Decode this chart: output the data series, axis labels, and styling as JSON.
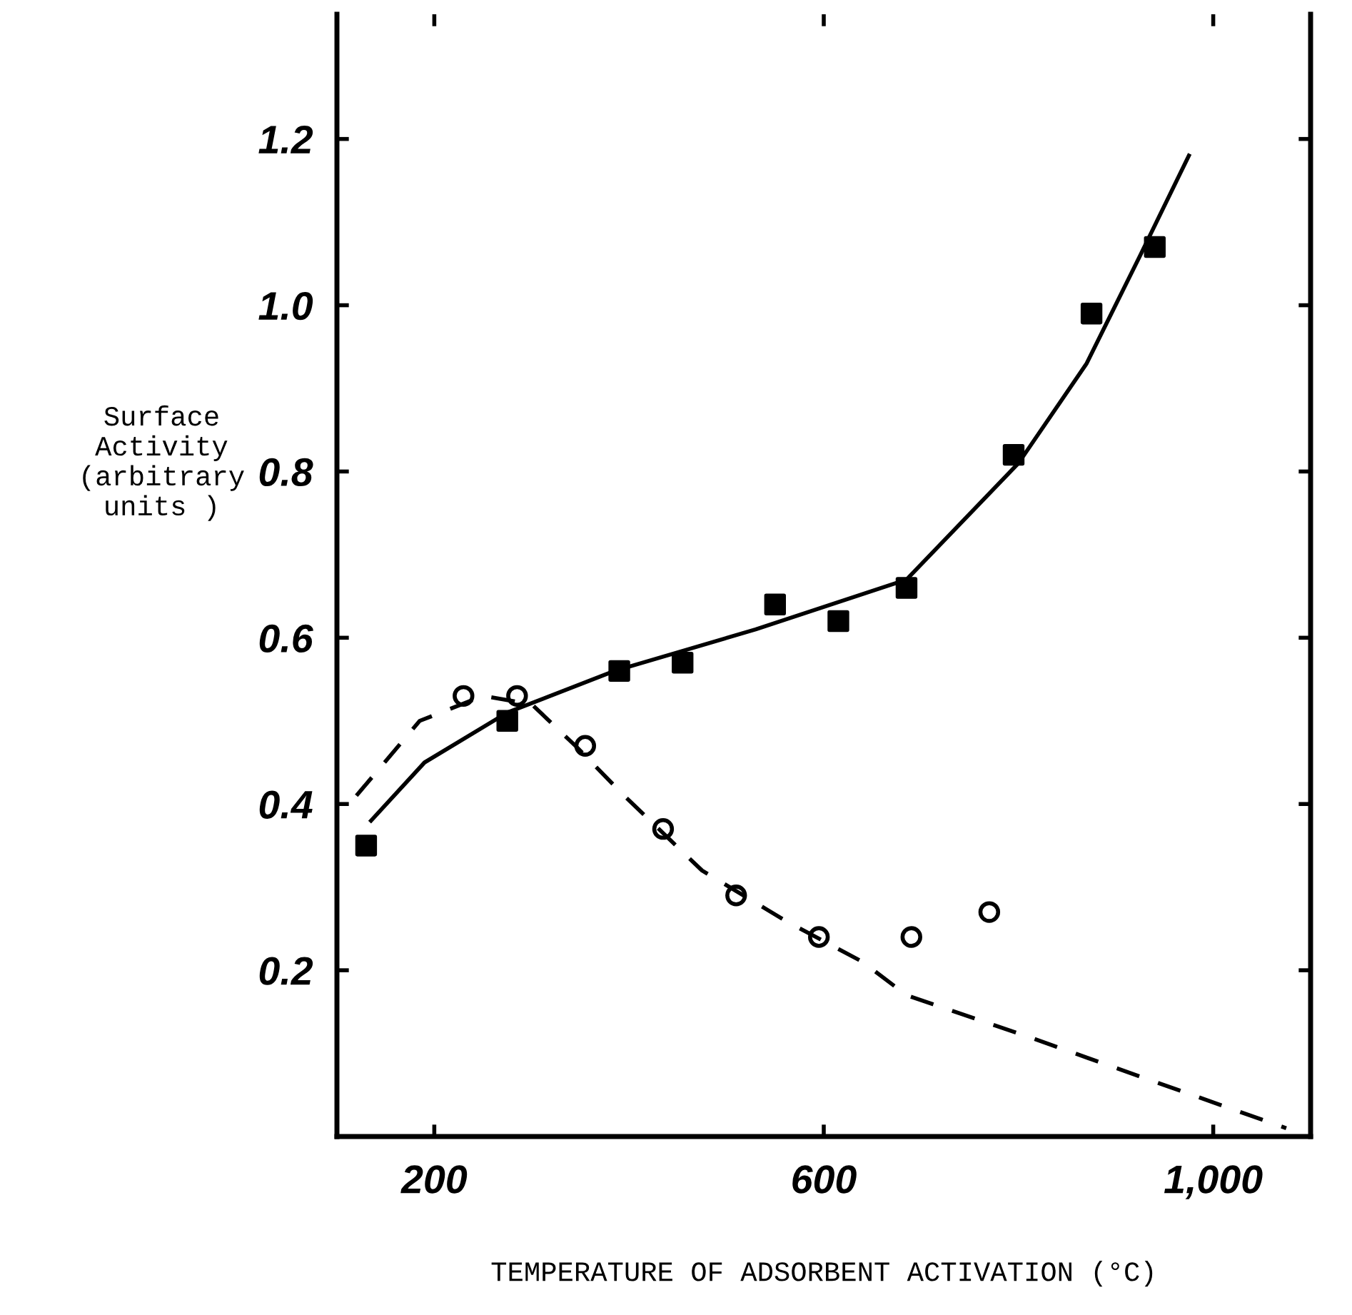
{
  "chart_data": {
    "type": "scatter",
    "xlabel": "TEMPERATURE OF ADSORBENT ACTIVATION (°C)",
    "ylabel": "Surface\nActivity\n(arbitrary\nunits )",
    "xlim": [
      100,
      1100
    ],
    "ylim": [
      0,
      1.35
    ],
    "xticks": [
      200,
      600,
      {
        "value": 1000,
        "label": "1,000"
      }
    ],
    "yticks": [
      0.2,
      0.4,
      0.6,
      0.8,
      {
        "value": 1.0,
        "label": "1.0"
      },
      1.2
    ],
    "grid": false,
    "series": [
      {
        "type": "line",
        "color": "#000000",
        "line_style": "solid",
        "marker": "none",
        "x": [
          135,
          190,
          275,
          385,
          530,
          685,
          800,
          870,
          925,
          975
        ],
        "values": [
          0.38,
          0.45,
          0.51,
          0.56,
          0.61,
          0.67,
          0.81,
          0.93,
          1.06,
          1.18
        ]
      },
      {
        "type": "line",
        "color": "#000000",
        "line_style": "dashed",
        "marker": "none",
        "x": [
          120,
          185,
          250,
          300,
          345,
          395,
          475,
          560,
          640,
          685,
          810,
          930,
          1075
        ],
        "values": [
          0.41,
          0.5,
          0.53,
          0.52,
          0.47,
          0.41,
          0.32,
          0.26,
          0.21,
          0.17,
          0.12,
          0.07,
          0.01
        ]
      },
      {
        "type": "scatter",
        "color": "#000000",
        "marker": "square",
        "x": [
          130,
          275,
          390,
          455,
          550,
          615,
          685,
          795,
          875,
          940
        ],
        "values": [
          0.35,
          0.5,
          0.56,
          0.57,
          0.64,
          0.62,
          0.66,
          0.82,
          0.99,
          1.07
        ]
      },
      {
        "color": "#000000",
        "marker": "circle",
        "x": [
          230,
          285,
          355,
          435,
          510,
          595,
          690,
          770
        ],
        "values": [
          0.53,
          0.53,
          0.47,
          0.37,
          0.29,
          0.24,
          0.24,
          0.27
        ]
      }
    ]
  }
}
